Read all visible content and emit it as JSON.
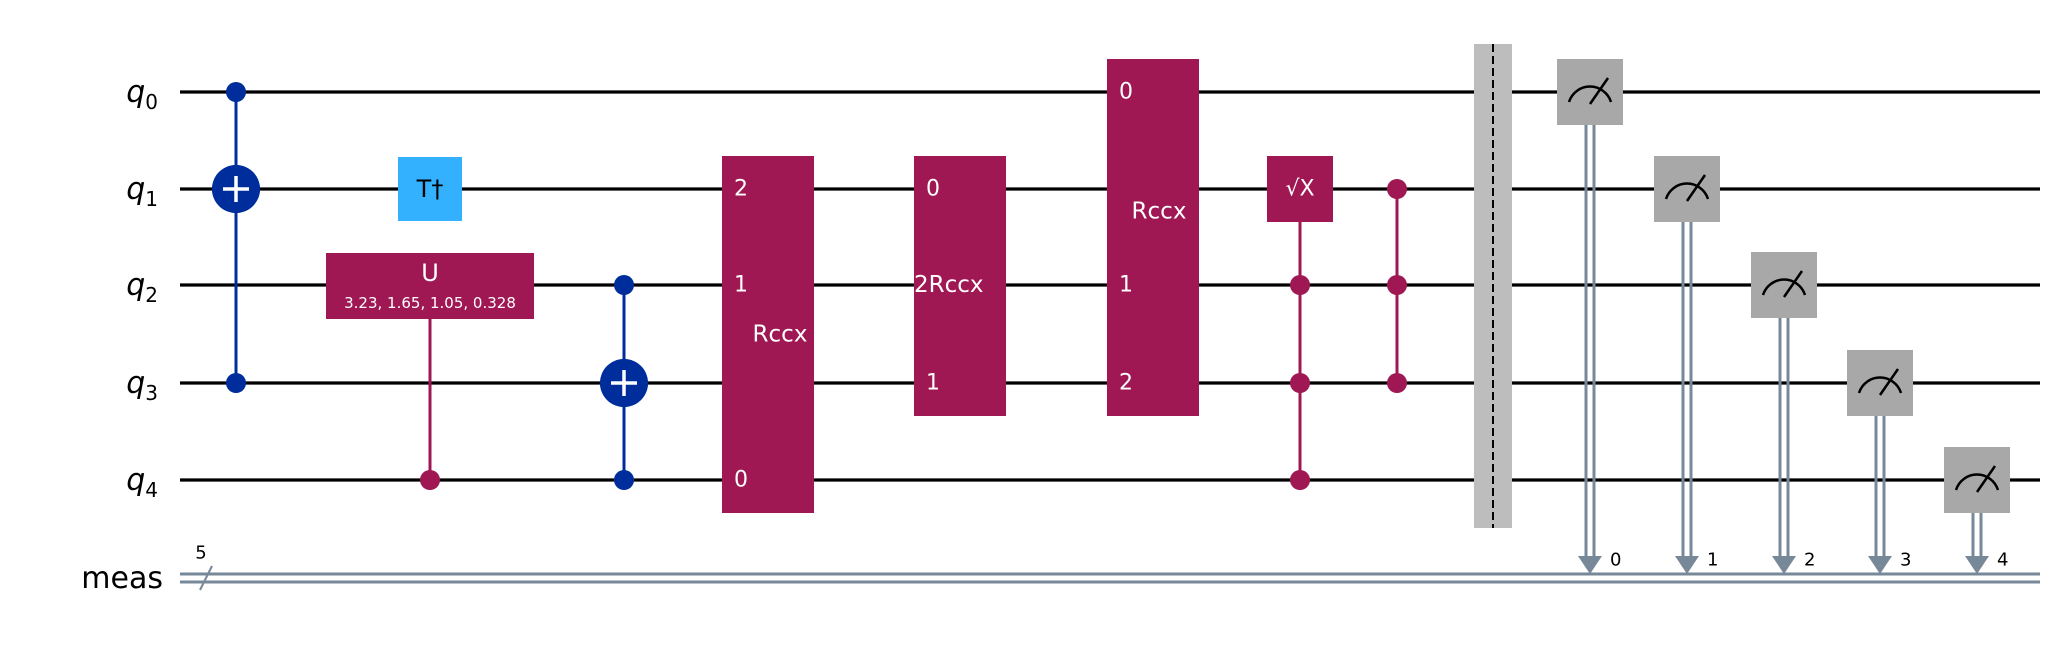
{
  "colors": {
    "wire": "#000000",
    "classical": "#778899",
    "cx_blue": "#002D9C",
    "t_gate": "#33B1FF",
    "magenta": "#9F1853",
    "measure": "#A8A8A8",
    "barrier": "#BDBDBD"
  },
  "qubits": [
    {
      "base": "q",
      "sub": "0"
    },
    {
      "base": "q",
      "sub": "1"
    },
    {
      "base": "q",
      "sub": "2"
    },
    {
      "base": "q",
      "sub": "3"
    },
    {
      "base": "q",
      "sub": "4"
    }
  ],
  "classical": {
    "name": "meas",
    "width_label": "5"
  },
  "gates": [
    {
      "type": "cx",
      "control": 0,
      "target": 1,
      "color": "cx_blue"
    },
    {
      "type": "cx",
      "control": 3,
      "target": 1,
      "color": "cx_blue"
    },
    {
      "type": "single",
      "qubit": 1,
      "label": "T†",
      "color": "t_gate"
    },
    {
      "type": "cu",
      "control": 4,
      "target": 2,
      "label": "U",
      "params": "3.23, 1.65, 1.05, 0.328",
      "color": "magenta"
    },
    {
      "type": "cx",
      "control": 2,
      "target": 3,
      "color": "cx_blue"
    },
    {
      "type": "cx",
      "control": 4,
      "target": 3,
      "color": "cx_blue"
    },
    {
      "type": "multi",
      "name": "Rccx",
      "top": 1,
      "bottom": 4,
      "pins": [
        {
          "q": 1,
          "label": "2"
        },
        {
          "q": 2,
          "label": "1"
        },
        {
          "q": 4,
          "label": "0"
        }
      ]
    },
    {
      "type": "multi",
      "name": "Rccx",
      "top": 1,
      "bottom": 3,
      "inline_label": "2",
      "pins": [
        {
          "q": 1,
          "label": "0"
        },
        {
          "q": 3,
          "label": "1"
        }
      ]
    },
    {
      "type": "multi",
      "name": "Rccx",
      "top": 0,
      "bottom": 3,
      "pins": [
        {
          "q": 0,
          "label": "0"
        },
        {
          "q": 2,
          "label": "1"
        },
        {
          "q": 3,
          "label": "2"
        }
      ]
    },
    {
      "type": "csx",
      "label": "√X",
      "target": 1,
      "controls": [
        2,
        3,
        4
      ]
    },
    {
      "type": "ccz",
      "qubits": [
        1,
        2,
        3
      ]
    }
  ],
  "measurements": [
    {
      "qubit": 0,
      "bit": "0"
    },
    {
      "qubit": 1,
      "bit": "1"
    },
    {
      "qubit": 2,
      "bit": "2"
    },
    {
      "qubit": 3,
      "bit": "3"
    },
    {
      "qubit": 4,
      "bit": "4"
    }
  ]
}
